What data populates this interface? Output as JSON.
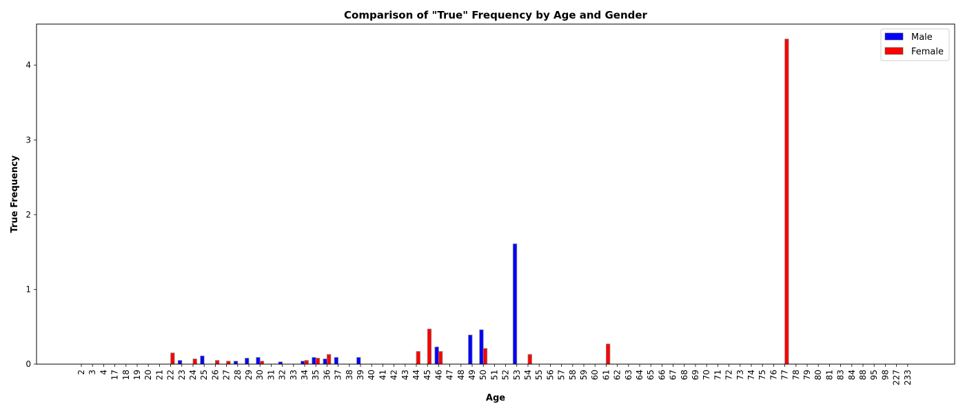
{
  "chart_data": {
    "type": "bar",
    "title": "Comparison of \"True\" Frequency by Age and Gender",
    "xlabel": "Age",
    "ylabel": "True Frequency",
    "ylim": [
      0,
      4.55
    ],
    "yticks": [
      0,
      1,
      2,
      3,
      4
    ],
    "grid": false,
    "legend_position": "top-right",
    "categories": [
      "2",
      "3",
      "4",
      "17",
      "18",
      "19",
      "20",
      "21",
      "22",
      "23",
      "24",
      "25",
      "26",
      "27",
      "28",
      "29",
      "30",
      "31",
      "32",
      "33",
      "34",
      "35",
      "36",
      "37",
      "38",
      "39",
      "40",
      "41",
      "42",
      "43",
      "44",
      "45",
      "46",
      "47",
      "48",
      "49",
      "50",
      "51",
      "52",
      "53",
      "54",
      "55",
      "56",
      "57",
      "58",
      "59",
      "60",
      "61",
      "62",
      "63",
      "64",
      "65",
      "66",
      "67",
      "68",
      "69",
      "70",
      "71",
      "72",
      "73",
      "74",
      "75",
      "76",
      "77",
      "78",
      "79",
      "80",
      "81",
      "83",
      "84",
      "88",
      "95",
      "98",
      "227",
      "233"
    ],
    "series": [
      {
        "name": "Male",
        "color": "#0000ff",
        "values": [
          0,
          0,
          0,
          0,
          0,
          0,
          0,
          0,
          0,
          0.05,
          0,
          0.11,
          0,
          0,
          0.04,
          0.08,
          0.09,
          0,
          0.03,
          0,
          0.04,
          0.09,
          0.07,
          0.09,
          0,
          0.09,
          0,
          0,
          0,
          0,
          0,
          0,
          0.23,
          0,
          0,
          0.39,
          0.46,
          0,
          0,
          1.61,
          0,
          0,
          0,
          0,
          0,
          0,
          0,
          0,
          0,
          0,
          0,
          0,
          0,
          0,
          0,
          0,
          0,
          0,
          0,
          0,
          0,
          0,
          0,
          0,
          0,
          0,
          0,
          0,
          0,
          0,
          0,
          0,
          0,
          0,
          0
        ]
      },
      {
        "name": "Female",
        "color": "#ff0000",
        "values": [
          0,
          0,
          0,
          0,
          0,
          0,
          0,
          0,
          0.15,
          0,
          0.07,
          0,
          0.05,
          0.04,
          0,
          0,
          0.04,
          0,
          0,
          0,
          0.05,
          0.08,
          0.13,
          0,
          0,
          0,
          0,
          0,
          0,
          0,
          0.17,
          0.47,
          0.17,
          0,
          0,
          0,
          0.21,
          0,
          0,
          0,
          0.13,
          0,
          0,
          0,
          0,
          0,
          0,
          0.27,
          0,
          0,
          0,
          0,
          0,
          0,
          0,
          0,
          0,
          0,
          0,
          0,
          0,
          0,
          0,
          4.35,
          0,
          0,
          0,
          0,
          0,
          0,
          0,
          0,
          0,
          0,
          0
        ]
      }
    ]
  }
}
